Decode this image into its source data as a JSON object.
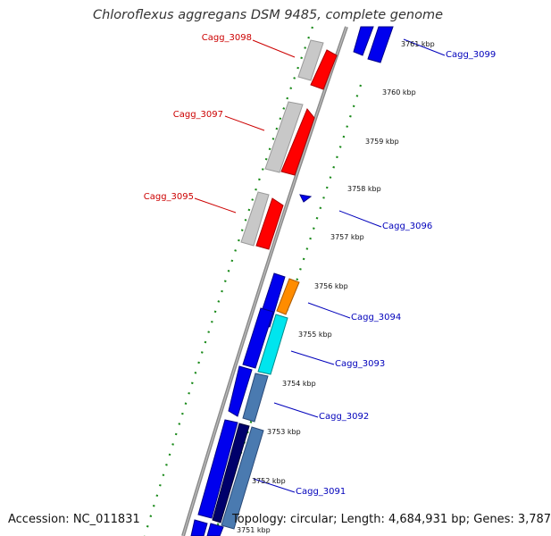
{
  "title": "Chloroflexus aggregans DSM 9485, complete genome",
  "footer": {
    "accession": "Accession: NC_011831",
    "summary": "Topology: circular; Length: 4,684,931 bp; Genes: 3,787"
  },
  "colors": {
    "forward_label": "#cc0000",
    "reverse_label": "#0000bb",
    "backbone": "#8a8a8a",
    "tick": "#1a8a1a",
    "gene_red": "#ff0000",
    "gene_gray": "#c8c8c8",
    "gene_blue": "#0000ee",
    "gene_orange": "#ff8c00",
    "gene_cyan": "#00e5ee",
    "gene_steel": "#4a7ab0",
    "gene_navy": "#00006b"
  },
  "genes": [
    {
      "label": "Cagg_3098",
      "strand": "forward"
    },
    {
      "label": "Cagg_3097",
      "strand": "forward"
    },
    {
      "label": "Cagg_3095",
      "strand": "forward"
    },
    {
      "label": "Cagg_3099",
      "strand": "reverse"
    },
    {
      "label": "Cagg_3096",
      "strand": "reverse"
    },
    {
      "label": "Cagg_3094",
      "strand": "reverse"
    },
    {
      "label": "Cagg_3093",
      "strand": "reverse"
    },
    {
      "label": "Cagg_3092",
      "strand": "reverse"
    },
    {
      "label": "Cagg_3091",
      "strand": "reverse"
    }
  ],
  "positions": [
    "3761 kbp",
    "3760 kbp",
    "3759 kbp",
    "3758 kbp",
    "3757 kbp",
    "3756 kbp",
    "3755 kbp",
    "3754 kbp",
    "3753 kbp",
    "3752 kbp",
    "3751 kbp"
  ]
}
